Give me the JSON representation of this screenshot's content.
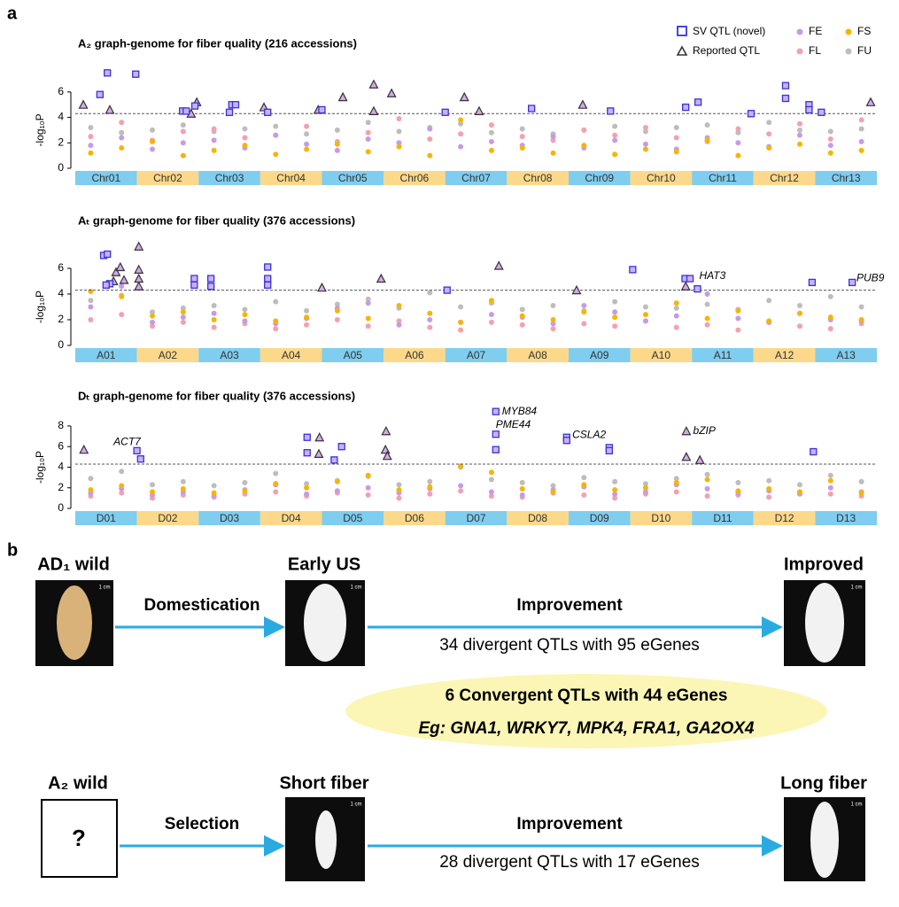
{
  "labels": {
    "a": "a",
    "b": "b"
  },
  "legend": {
    "sv": {
      "name": "SV QTL (novel)",
      "color": "#3535d8"
    },
    "reported": {
      "name": "Reported QTL",
      "color": "#333333"
    }
  },
  "chromosome_colors": [
    "#7fcdef",
    "#fcd98a"
  ],
  "chart_data": [
    {
      "type": "manhattan",
      "title": "A₂ graph-genome for fiber quality (216 accessions)",
      "ylabel": "-log₁₀P",
      "chromosomes": [
        "Chr01",
        "Chr02",
        "Chr03",
        "Chr04",
        "Chr05",
        "Chr06",
        "Chr07",
        "Chr08",
        "Chr09",
        "Chr10",
        "Chr11",
        "Chr12",
        "Chr13"
      ],
      "xlim": [
        0,
        13
      ],
      "ylim": [
        0,
        7.8
      ],
      "yticks": [
        0,
        2,
        4,
        6
      ],
      "threshold": 4.3,
      "x": [
        0.25,
        0.75,
        1.25,
        1.75,
        2.25,
        2.75,
        3.25,
        3.75,
        4.25,
        4.75,
        5.25,
        5.75,
        6.25,
        6.75,
        7.25,
        7.75,
        8.25,
        8.75,
        9.25,
        9.75,
        10.25,
        10.75,
        11.25,
        11.75,
        12.25,
        12.75
      ],
      "series": [
        {
          "name": "FU",
          "color": "#bdbdbd",
          "values": [
            3.2,
            2.8,
            3.0,
            3.4,
            2.9,
            3.1,
            3.3,
            2.7,
            3.0,
            3.6,
            2.9,
            3.2,
            3.5,
            2.8,
            3.1,
            2.7,
            3.0,
            3.3,
            2.9,
            3.2,
            3.4,
            2.8,
            3.6,
            3.0,
            2.9,
            3.1
          ]
        },
        {
          "name": "FL",
          "color": "#f4a0b0",
          "values": [
            2.5,
            3.6,
            2.2,
            2.9,
            3.1,
            2.4,
            2.6,
            3.3,
            2.1,
            2.8,
            3.9,
            2.3,
            2.7,
            3.4,
            2.5,
            2.2,
            3.0,
            2.6,
            3.2,
            2.4,
            2.1,
            3.1,
            2.7,
            3.5,
            2.3,
            3.8
          ]
        },
        {
          "name": "FE",
          "color": "#c59be8",
          "values": [
            1.8,
            2.4,
            1.5,
            2.0,
            2.2,
            1.6,
            2.6,
            1.9,
            1.4,
            2.3,
            2.0,
            3.1,
            1.7,
            2.1,
            1.8,
            2.5,
            1.6,
            2.2,
            1.9,
            1.5,
            2.4,
            2.0,
            1.7,
            2.6,
            1.8,
            2.1
          ]
        },
        {
          "name": "FS",
          "color": "#f7b500",
          "values": [
            1.2,
            1.6,
            2.1,
            1.0,
            1.4,
            1.8,
            1.1,
            1.5,
            1.9,
            1.3,
            1.7,
            1.0,
            3.8,
            1.4,
            1.6,
            1.2,
            1.8,
            1.1,
            1.5,
            1.3,
            2.2,
            1.0,
            1.6,
            1.9,
            1.2,
            1.4
          ]
        }
      ],
      "sv": {
        "x": [
          0.4,
          0.52,
          0.98,
          1.74,
          1.8,
          1.94,
          2.5,
          2.54,
          2.6,
          3.12,
          4.0,
          6.0,
          7.4,
          8.68,
          9.9,
          10.1,
          10.96,
          11.52,
          11.52,
          11.9,
          11.9,
          12.1
        ],
        "values": [
          5.8,
          7.5,
          7.4,
          4.5,
          4.5,
          4.9,
          4.4,
          5.0,
          5.0,
          4.4,
          4.6,
          4.4,
          4.7,
          4.5,
          4.8,
          5.2,
          4.3,
          6.5,
          5.5,
          5.0,
          4.6,
          4.4
        ]
      },
      "reported": {
        "x": [
          0.13,
          0.56,
          1.88,
          1.97,
          3.06,
          3.94,
          4.34,
          4.84,
          4.84,
          5.13,
          6.31,
          6.55,
          8.23,
          12.9
        ],
        "values": [
          5.0,
          4.6,
          4.3,
          5.2,
          4.8,
          4.6,
          5.6,
          6.6,
          4.5,
          5.9,
          5.6,
          4.5,
          5.0,
          5.2
        ]
      },
      "annotations": []
    },
    {
      "type": "manhattan",
      "title": "Aₜ graph-genome for fiber quality (376 accessions)",
      "ylabel": "-log₁₀P",
      "chromosomes": [
        "A01",
        "A02",
        "A03",
        "A04",
        "A05",
        "A06",
        "A07",
        "A08",
        "A09",
        "A10",
        "A11",
        "A12",
        "A13"
      ],
      "xlim": [
        0,
        13
      ],
      "ylim": [
        0,
        8.2
      ],
      "yticks": [
        0,
        2,
        4,
        6
      ],
      "threshold": 4.3,
      "x": [
        0.25,
        0.75,
        1.25,
        1.75,
        2.25,
        2.75,
        3.25,
        3.75,
        4.25,
        4.75,
        5.25,
        5.75,
        6.25,
        6.75,
        7.25,
        7.75,
        8.25,
        8.75,
        9.25,
        9.75,
        10.25,
        10.75,
        11.25,
        11.75,
        12.25,
        12.75
      ],
      "series": [
        {
          "color": "#bdbdbd",
          "values": [
            3.5,
            3.9,
            2.6,
            2.9,
            3.1,
            2.8,
            3.4,
            2.7,
            3.2,
            3.6,
            2.9,
            4.1,
            3.0,
            3.3,
            2.8,
            3.1,
            2.7,
            3.4,
            3.0,
            2.9,
            3.2,
            2.8,
            3.5,
            3.1,
            3.8,
            3.0
          ]
        },
        {
          "color": "#f4a0b0",
          "values": [
            2.0,
            2.4,
            1.5,
            1.8,
            1.4,
            1.7,
            1.3,
            1.6,
            2.0,
            1.5,
            1.9,
            1.4,
            1.2,
            1.8,
            1.6,
            1.3,
            1.7,
            1.5,
            1.9,
            1.4,
            1.6,
            1.2,
            1.8,
            1.5,
            1.3,
            1.7
          ]
        },
        {
          "color": "#c59be8",
          "values": [
            3.0,
            4.6,
            1.8,
            2.2,
            2.5,
            1.9,
            1.7,
            2.1,
            2.9,
            3.3,
            1.6,
            2.0,
            1.8,
            2.4,
            2.2,
            1.7,
            3.1,
            2.6,
            1.9,
            2.3,
            4.0,
            2.1,
            1.8,
            2.5,
            2.0,
            1.9
          ]
        },
        {
          "color": "#f7b500",
          "values": [
            4.2,
            3.8,
            2.3,
            2.6,
            2.0,
            2.4,
            1.9,
            2.2,
            2.7,
            2.1,
            3.1,
            2.5,
            1.8,
            3.5,
            2.3,
            2.0,
            2.6,
            2.2,
            2.4,
            3.3,
            2.1,
            2.7,
            1.9,
            2.5,
            2.2,
            2.0
          ]
        }
      ],
      "sv": {
        "x": [
          0.46,
          0.52,
          0.56,
          0.5,
          1.93,
          1.93,
          2.2,
          2.2,
          3.12,
          3.12,
          3.12,
          6.03,
          9.04,
          9.89,
          9.97,
          10.09,
          11.95,
          12.6
        ],
        "values": [
          7.0,
          7.1,
          4.8,
          4.7,
          5.2,
          4.7,
          5.2,
          4.6,
          6.1,
          5.2,
          4.7,
          4.3,
          5.9,
          5.2,
          5.2,
          4.4,
          4.9,
          4.9
        ]
      },
      "reported": {
        "x": [
          0.62,
          0.66,
          0.73,
          0.79,
          1.03,
          1.03,
          1.03,
          1.03,
          4.0,
          4.96,
          6.87,
          8.13,
          9.9
        ],
        "values": [
          5.0,
          5.7,
          6.1,
          5.1,
          7.7,
          5.9,
          5.2,
          4.6,
          4.5,
          5.2,
          6.2,
          4.3,
          4.6
        ]
      },
      "annotations": [
        {
          "text": "HAT3",
          "x": 10.12,
          "y": 5.4
        },
        {
          "text": "PUB9",
          "x": 12.67,
          "y": 5.2
        }
      ]
    },
    {
      "type": "manhattan",
      "title": "Dₜ graph-genome for fiber quality (376 accessions)",
      "ylabel": "-log₁₀P",
      "chromosomes": [
        "D01",
        "D02",
        "D03",
        "D04",
        "D05",
        "D06",
        "D07",
        "D08",
        "D09",
        "D10",
        "D11",
        "D12",
        "D13"
      ],
      "xlim": [
        0,
        13
      ],
      "ylim": [
        0,
        9.8
      ],
      "yticks": [
        0,
        2,
        4,
        6,
        8
      ],
      "threshold": 4.3,
      "x": [
        0.25,
        0.75,
        1.25,
        1.75,
        2.25,
        2.75,
        3.25,
        3.75,
        4.25,
        4.75,
        5.25,
        5.75,
        6.25,
        6.75,
        7.25,
        7.75,
        8.25,
        8.75,
        9.25,
        9.75,
        10.25,
        10.75,
        11.25,
        11.75,
        12.25,
        12.75
      ],
      "series": [
        {
          "color": "#bdbdbd",
          "values": [
            2.9,
            3.6,
            2.3,
            2.6,
            2.2,
            2.5,
            3.4,
            2.4,
            2.7,
            3.1,
            2.3,
            2.6,
            4.0,
            2.8,
            2.5,
            2.2,
            3.0,
            2.6,
            2.4,
            2.9,
            3.3,
            2.5,
            2.7,
            2.3,
            3.2,
            2.6
          ]
        },
        {
          "color": "#f4a0b0",
          "values": [
            1.2,
            1.5,
            1.0,
            1.3,
            1.1,
            1.4,
            1.6,
            1.2,
            1.5,
            1.3,
            1.0,
            1.4,
            1.7,
            1.2,
            1.1,
            1.5,
            1.3,
            1.0,
            1.4,
            1.6,
            1.2,
            1.3,
            1.1,
            1.5,
            1.4,
            1.2
          ]
        },
        {
          "color": "#c59be8",
          "values": [
            1.5,
            1.9,
            1.3,
            1.6,
            1.2,
            1.8,
            2.3,
            1.4,
            1.7,
            2.0,
            1.5,
            1.9,
            2.2,
            1.6,
            1.3,
            1.8,
            2.1,
            1.4,
            1.6,
            2.3,
            1.9,
            1.5,
            1.7,
            1.4,
            2.0,
            1.6
          ]
        },
        {
          "color": "#f7b500",
          "values": [
            1.8,
            2.2,
            1.6,
            1.9,
            1.5,
            1.7,
            2.4,
            2.0,
            2.6,
            3.2,
            1.8,
            2.1,
            4.1,
            3.5,
            1.9,
            1.6,
            2.3,
            1.8,
            2.0,
            2.5,
            2.8,
            1.7,
            1.9,
            1.6,
            2.7,
            1.5
          ]
        }
      ],
      "sv": {
        "x": [
          1.0,
          1.06,
          3.76,
          3.76,
          4.2,
          4.32,
          6.82,
          6.82,
          6.82,
          7.97,
          7.97,
          8.66,
          8.66,
          11.97
        ],
        "values": [
          5.6,
          4.8,
          6.9,
          5.4,
          4.7,
          6.0,
          9.4,
          7.2,
          5.7,
          6.9,
          6.6,
          5.9,
          5.6,
          5.5
        ]
      },
      "reported": {
        "x": [
          0.14,
          3.96,
          3.95,
          5.04,
          5.03,
          5.06,
          9.91,
          9.91,
          10.13
        ],
        "values": [
          5.7,
          6.9,
          5.3,
          7.5,
          5.7,
          5.1,
          7.5,
          5.0,
          4.7
        ]
      },
      "annotations": [
        {
          "text": "ACT7",
          "x": 0.62,
          "y": 6.4
        },
        {
          "text": "MYB84",
          "x": 6.92,
          "y": 9.4
        },
        {
          "text": "PME44",
          "x": 6.82,
          "y": 8.1
        },
        {
          "text": "CSLA2",
          "x": 8.06,
          "y": 7.1
        },
        {
          "text": "bZIP",
          "x": 10.02,
          "y": 7.5
        }
      ]
    }
  ],
  "diagram": {
    "scale_label": "1 cm",
    "row1": {
      "wild": "AD₁ wild",
      "step1": "Domestication",
      "mid": "Early US",
      "step2": "Improvement",
      "note": "34 divergent QTLs with 95 eGenes",
      "end": "Improved"
    },
    "convergent": {
      "line1": "6 Convergent QTLs with 44 eGenes",
      "line2": "Eg: GNA1, WRKY7, MPK4, FRA1, GA2OX4"
    },
    "row2": {
      "wild": "A₂ wild",
      "unknown": "?",
      "step1": "Selection",
      "mid": "Short fiber",
      "step2": "Improvement",
      "note": "28 divergent QTLs with 17 eGenes",
      "end": "Long fiber"
    }
  }
}
